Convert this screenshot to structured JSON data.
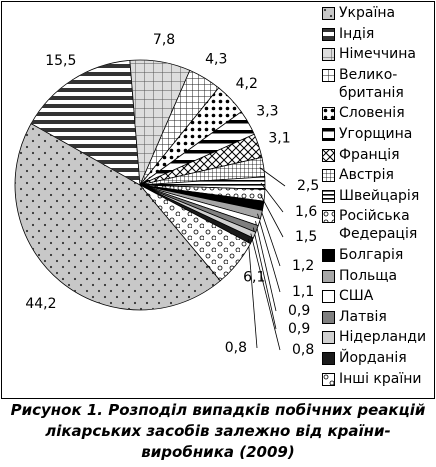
{
  "chart_data": {
    "type": "pie",
    "categories": [
      "Україна",
      "Індія",
      "Німеччина",
      "Велико-\nбританія",
      "Словенія",
      "Угорщина",
      "Франція",
      "Австрія",
      "Швейцарія",
      "Російська\nФедерація",
      "Болгарія",
      "Польща",
      "США",
      "Латвія",
      "Нідерланди",
      "Йорданія",
      "Інші країни"
    ],
    "values": [
      44.2,
      15.5,
      7.8,
      4.3,
      4.2,
      3.3,
      3.1,
      2.5,
      1.6,
      1.5,
      1.2,
      1.1,
      0.9,
      0.9,
      0.8,
      0.8,
      6.1
    ],
    "value_labels": [
      "44,2",
      "15,5",
      "7,8",
      "4,3",
      "4,2",
      "3,3",
      "3,1",
      "2,5",
      "1,6",
      "1,5",
      "1,2",
      "1,1",
      "0,9",
      "0,9",
      "0,8",
      "0,8",
      "6,1"
    ],
    "colors": [
      "#c8c8c8",
      "#ffffff",
      "#dddddd",
      "#ffffff",
      "#ffffff",
      "#ffffff",
      "#ffffff",
      "#ffffff",
      "#ffffff",
      "#ffffff",
      "#000000",
      "#a6a6a6",
      "#ffffff",
      "#7f7f7f",
      "#d0d0d0",
      "#1a1a1a",
      "#ffffff"
    ],
    "caption": "Рисунок 1. Розподіл випадків побічних реакцій лікарських засобів залежно від країни-виробника (2009)"
  }
}
